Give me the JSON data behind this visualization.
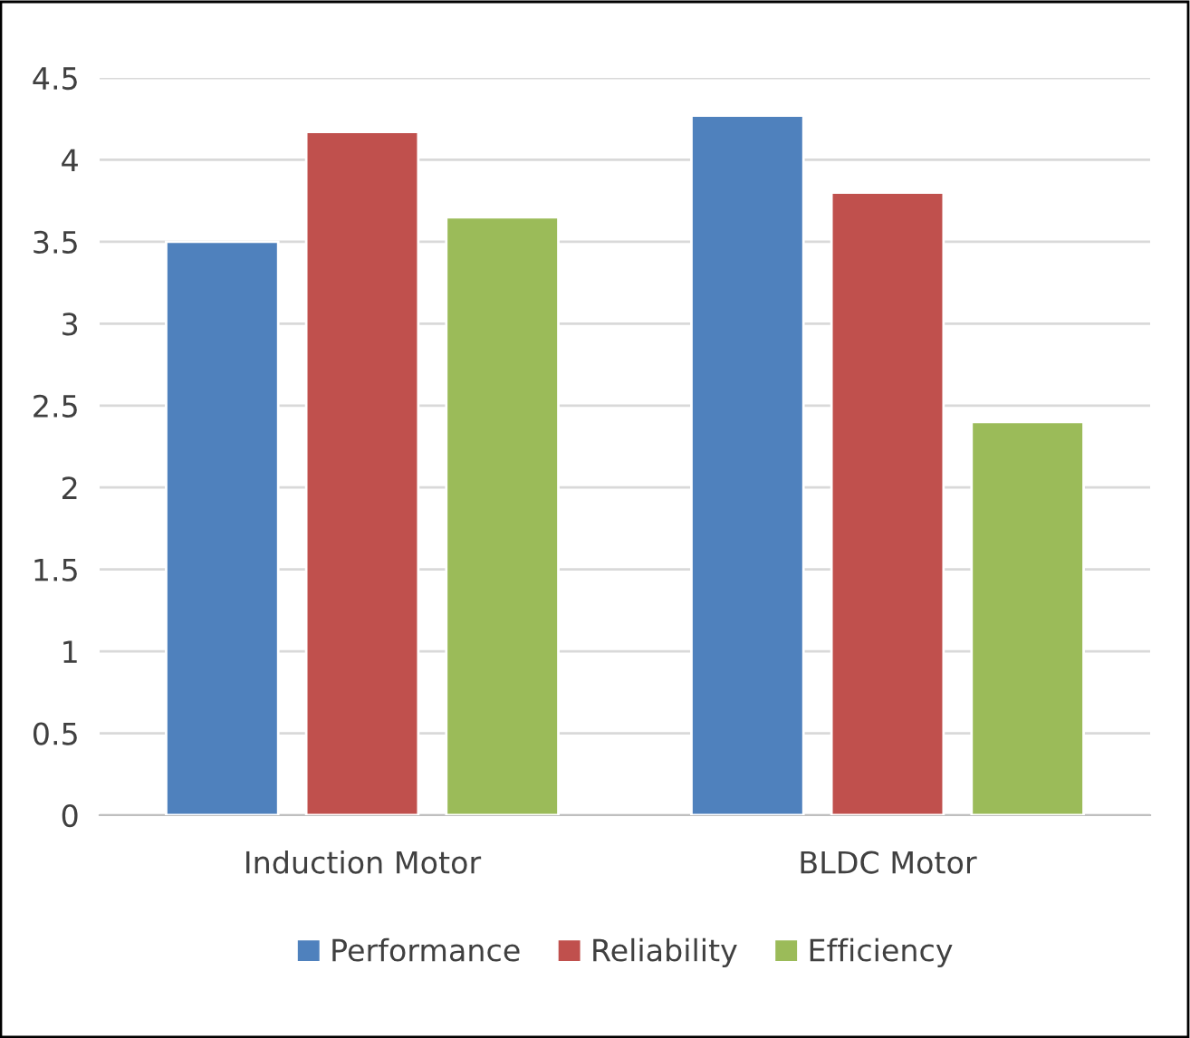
{
  "chart_data": {
    "type": "bar",
    "categories": [
      "Induction Motor",
      "BLDC Motor"
    ],
    "series": [
      {
        "name": "Performance",
        "color": "#4f81bd",
        "values": [
          3.5,
          4.27
        ]
      },
      {
        "name": "Reliability",
        "color": "#c0504d",
        "values": [
          4.17,
          3.8
        ]
      },
      {
        "name": "Efficiency",
        "color": "#9bbb59",
        "values": [
          3.65,
          2.4
        ]
      }
    ],
    "ylim": [
      0,
      4.5
    ],
    "yticks": [
      0,
      0.5,
      1,
      1.5,
      2,
      2.5,
      3,
      3.5,
      4,
      4.5
    ],
    "grid": "y",
    "legend": "bottom"
  }
}
